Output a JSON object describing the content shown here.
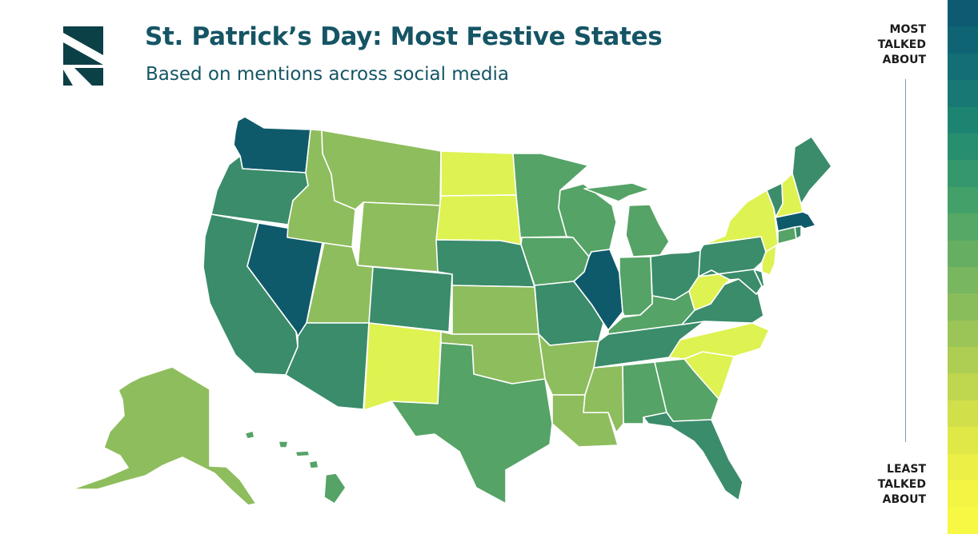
{
  "header": {
    "title": "St. Patrick’s Day: Most Festive States",
    "subtitle": "Based on mentions across social media"
  },
  "legend": {
    "top_label": [
      "MOST",
      "TALKED",
      "ABOUT"
    ],
    "bottom_label": [
      "LEAST",
      "TALKED",
      "ABOUT"
    ],
    "scale_colors": [
      "#0e5a72",
      "#0f6474",
      "#136e75",
      "#187974",
      "#1e8472",
      "#288e70",
      "#34986c",
      "#43a068",
      "#55a865",
      "#66af62",
      "#78b65f",
      "#89bd5b",
      "#9bc557",
      "#adcd53",
      "#bfd64f",
      "#d1df4b",
      "#e0e848",
      "#ecf046",
      "#f3f544",
      "#f6f843"
    ]
  },
  "palette": {
    "level_5": "#0f5a6a",
    "level_4": "#3a8c6a",
    "level_3": "#55a366",
    "level_2": "#8ebd5d",
    "level_1": "#def251",
    "logo": "#0c4047",
    "border": "#ffffff"
  },
  "map_data": {
    "scale": "5 = most talked about, 1 = least talked about",
    "states": [
      {
        "id": "WA",
        "level": 5
      },
      {
        "id": "OR",
        "level": 4
      },
      {
        "id": "CA",
        "level": 4
      },
      {
        "id": "NV",
        "level": 5
      },
      {
        "id": "ID",
        "level": 2
      },
      {
        "id": "MT",
        "level": 2
      },
      {
        "id": "WY",
        "level": 2
      },
      {
        "id": "UT",
        "level": 2
      },
      {
        "id": "AZ",
        "level": 4
      },
      {
        "id": "CO",
        "level": 4
      },
      {
        "id": "NM",
        "level": 1
      },
      {
        "id": "ND",
        "level": 1
      },
      {
        "id": "SD",
        "level": 1
      },
      {
        "id": "NE",
        "level": 4
      },
      {
        "id": "KS",
        "level": 2
      },
      {
        "id": "OK",
        "level": 2
      },
      {
        "id": "TX",
        "level": 3
      },
      {
        "id": "MN",
        "level": 3
      },
      {
        "id": "IA",
        "level": 3
      },
      {
        "id": "MO",
        "level": 4
      },
      {
        "id": "AR",
        "level": 2
      },
      {
        "id": "LA",
        "level": 2
      },
      {
        "id": "WI",
        "level": 3
      },
      {
        "id": "IL",
        "level": 5
      },
      {
        "id": "MI",
        "level": 3
      },
      {
        "id": "IN",
        "level": 3
      },
      {
        "id": "OH",
        "level": 4
      },
      {
        "id": "KY",
        "level": 3
      },
      {
        "id": "TN",
        "level": 4
      },
      {
        "id": "MS",
        "level": 2
      },
      {
        "id": "AL",
        "level": 3
      },
      {
        "id": "GA",
        "level": 3
      },
      {
        "id": "FL",
        "level": 4
      },
      {
        "id": "SC",
        "level": 1
      },
      {
        "id": "NC",
        "level": 1
      },
      {
        "id": "VA",
        "level": 4
      },
      {
        "id": "WV",
        "level": 1
      },
      {
        "id": "PA",
        "level": 4
      },
      {
        "id": "NY",
        "level": 1
      },
      {
        "id": "NJ",
        "level": 1
      },
      {
        "id": "MD",
        "level": 4
      },
      {
        "id": "DE",
        "level": 4
      },
      {
        "id": "CT",
        "level": 3
      },
      {
        "id": "RI",
        "level": 4
      },
      {
        "id": "MA",
        "level": 5
      },
      {
        "id": "VT",
        "level": 4
      },
      {
        "id": "NH",
        "level": 1
      },
      {
        "id": "ME",
        "level": 4
      },
      {
        "id": "AK",
        "level": 2
      },
      {
        "id": "HI",
        "level": 3
      }
    ]
  }
}
